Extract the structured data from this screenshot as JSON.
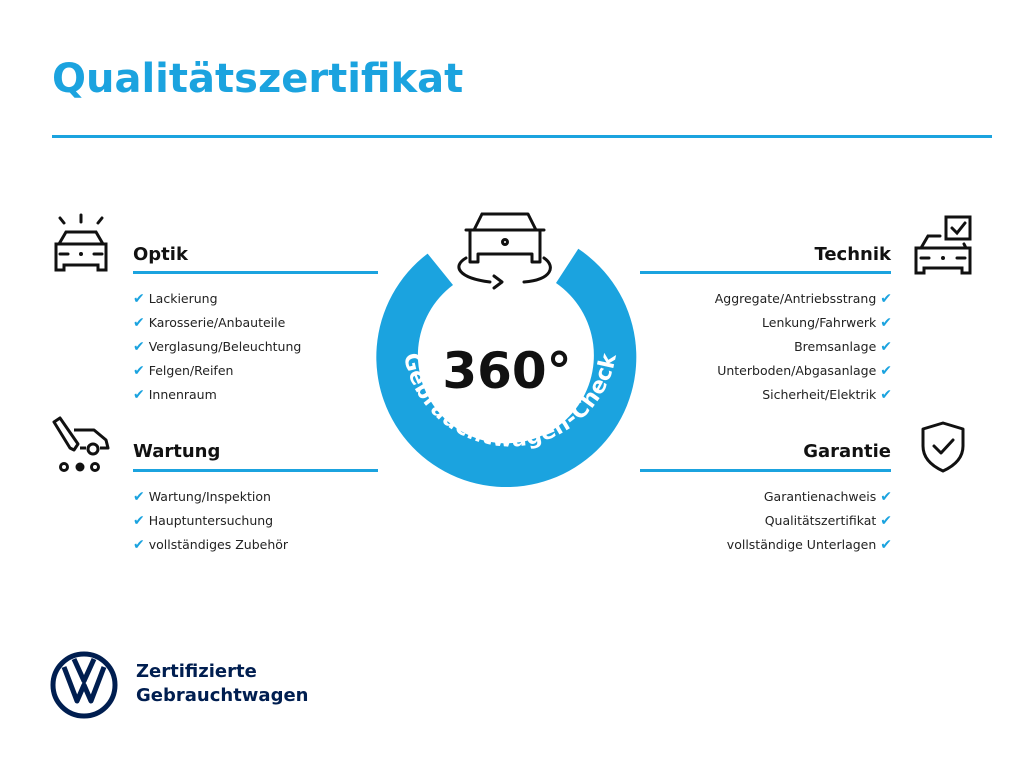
{
  "title": "Qualitätszertifikat",
  "colors": {
    "accent": "#1ba3df",
    "brand": "#001e50"
  },
  "center": {
    "number": "360°",
    "arc_text": "Gebrauchtwagen-Check",
    "icon": "car-rotate-icon"
  },
  "sections": {
    "optik": {
      "heading": "Optik",
      "icon": "car-lights-icon",
      "items": [
        "Lackierung",
        "Karosserie/Anbauteile",
        "Verglasung/Beleuchtung",
        "Felgen/Reifen",
        "Innenraum"
      ]
    },
    "wartung": {
      "heading": "Wartung",
      "icon": "service-car-icon",
      "items": [
        "Wartung/Inspektion",
        "Hauptuntersuchung",
        "vollständiges Zubehör"
      ]
    },
    "technik": {
      "heading": "Technik",
      "icon": "car-checkbox-icon",
      "items": [
        "Aggregate/Antriebsstrang",
        "Lenkung/Fahrwerk",
        "Bremsanlage",
        "Unterboden/Abgasanlage",
        "Sicherheit/Elektrik"
      ]
    },
    "garantie": {
      "heading": "Garantie",
      "icon": "shield-check-icon",
      "items": [
        "Garantienachweis",
        "Qualitätszertifikat",
        "vollständige Unterlagen"
      ]
    }
  },
  "check_mark": "✔",
  "brand": {
    "line1": "Zertifizierte",
    "line2": "Gebrauchtwagen",
    "logo": "vw-logo"
  }
}
